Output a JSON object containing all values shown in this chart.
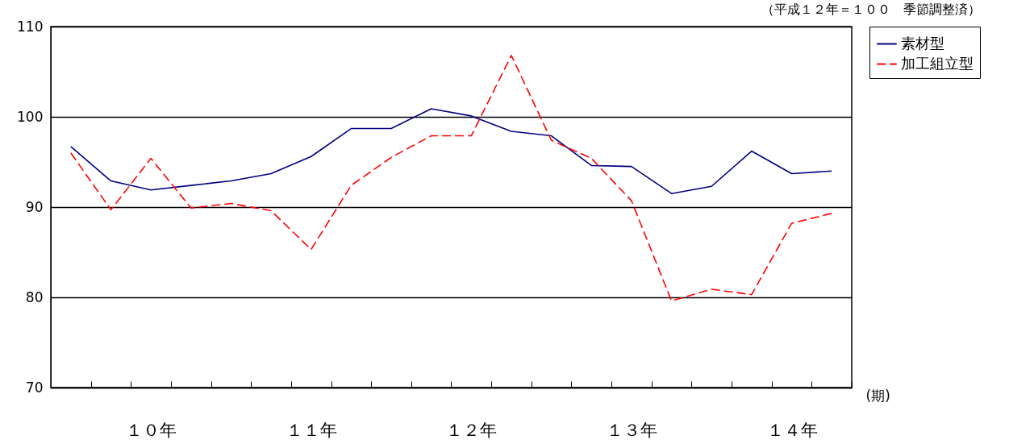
{
  "chart_data": {
    "type": "line",
    "xlabel": "(期)",
    "annotations": [
      "（平成１２年＝１００　季節調整済）"
    ],
    "categories": [
      null,
      null,
      "１０年",
      null,
      null,
      null,
      "１１年",
      null,
      null,
      null,
      "１２年",
      null,
      null,
      null,
      "１３年",
      null,
      null,
      null,
      "１４年",
      null
    ],
    "series": [
      {
        "name": "素材型",
        "color": "#000080",
        "line_style": "solid",
        "values": [
          96.7,
          92.9,
          91.9,
          92.4,
          92.9,
          93.7,
          95.6,
          98.7,
          98.7,
          100.9,
          100.1,
          98.4,
          97.9,
          94.6,
          94.5,
          91.5,
          92.3,
          96.2,
          93.7,
          94.0
        ]
      },
      {
        "name": "加工組立型",
        "color": "#ff0000",
        "line_style": "dashed",
        "values": [
          96.0,
          89.7,
          95.4,
          89.9,
          90.4,
          89.6,
          85.3,
          92.4,
          95.5,
          97.9,
          97.9,
          106.8,
          97.4,
          95.4,
          90.7,
          79.6,
          80.9,
          80.3,
          88.2,
          89.3
        ]
      }
    ],
    "ylim": [
      70,
      110
    ],
    "yticks": [
      70,
      80,
      90,
      100,
      110
    ],
    "grid": "y",
    "legend": "right",
    "marker": "none"
  }
}
